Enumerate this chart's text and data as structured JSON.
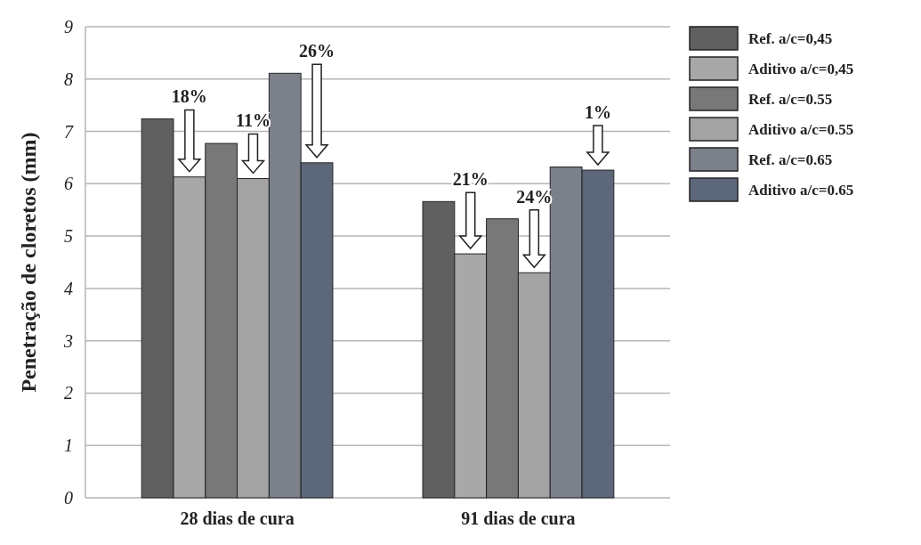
{
  "chart_data": {
    "type": "bar",
    "ylabel": "Penetração de cloretos (mm)",
    "categories": [
      "28 dias de cura",
      "91 dias de cura"
    ],
    "series": [
      {
        "name": "Ref. a/c=0,45",
        "color": "#606060",
        "values": [
          7.24,
          5.66
        ]
      },
      {
        "name": "Aditivo a/c=0,45",
        "color": "#a8a8a8",
        "values": [
          6.13,
          4.66
        ]
      },
      {
        "name": "Ref. a/c=0.55",
        "color": "#787878",
        "values": [
          6.77,
          5.33
        ]
      },
      {
        "name": "Aditivo a/c=0.55",
        "color": "#a3a3a3",
        "values": [
          6.1,
          4.3
        ]
      },
      {
        "name": "Ref. a/c=0.65",
        "color": "#7b808b",
        "values": [
          8.11,
          6.32
        ]
      },
      {
        "name": "Aditivo a/c=0.65",
        "color": "#5c6779",
        "values": [
          6.4,
          6.26
        ]
      }
    ],
    "ylim": [
      0,
      9
    ],
    "yticks": [
      0,
      1,
      2,
      3,
      4,
      5,
      6,
      7,
      8,
      9
    ],
    "grid": "y",
    "legend": "top right",
    "annotations": [
      "18%",
      "11%",
      "26%",
      "21%",
      "24%",
      "1%"
    ]
  }
}
